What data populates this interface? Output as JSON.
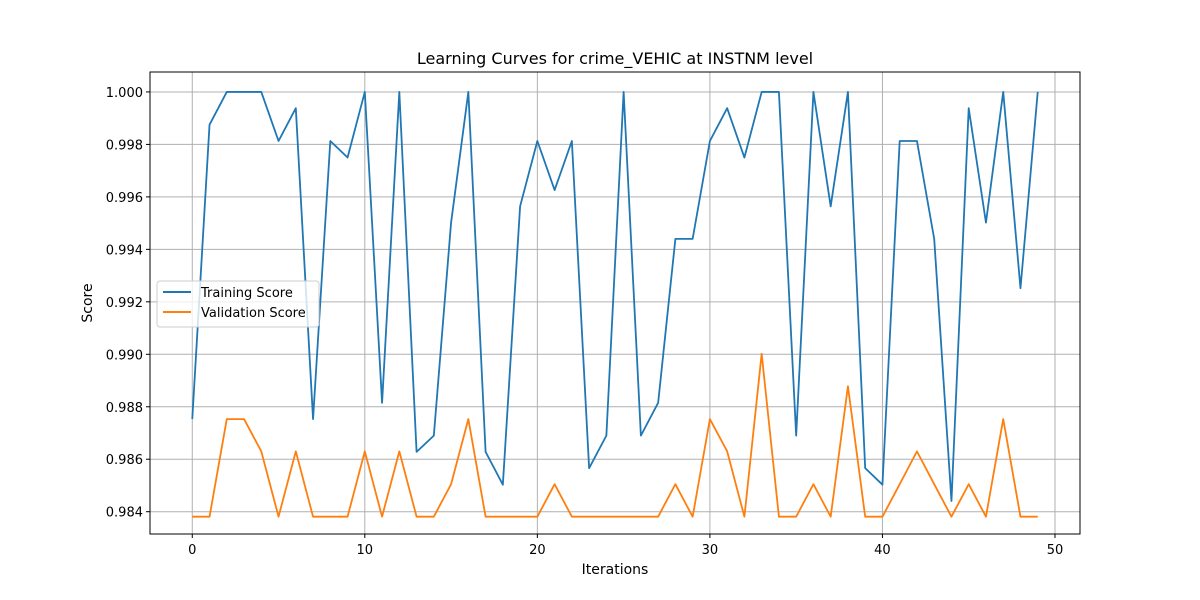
{
  "chart_data": {
    "type": "line",
    "title": "Learning Curves for crime_VEHIC at INSTNM level",
    "xlabel": "Iterations",
    "ylabel": "Score",
    "xlim": [
      -2.45,
      51.45
    ],
    "ylim": [
      0.98315,
      1.00076
    ],
    "xticks": [
      0,
      10,
      20,
      30,
      40,
      50
    ],
    "xtick_labels": [
      "0",
      "10",
      "20",
      "30",
      "40",
      "50"
    ],
    "yticks": [
      0.984,
      0.986,
      0.988,
      0.99,
      0.992,
      0.994,
      0.996,
      0.998,
      1.0
    ],
    "ytick_labels": [
      "0.984",
      "0.986",
      "0.988",
      "0.990",
      "0.992",
      "0.994",
      "0.996",
      "0.998",
      "1.000"
    ],
    "grid": true,
    "legend_position": "center-left",
    "x": [
      0,
      1,
      2,
      3,
      4,
      5,
      6,
      7,
      8,
      9,
      10,
      11,
      12,
      13,
      14,
      15,
      16,
      17,
      18,
      19,
      20,
      21,
      22,
      23,
      24,
      25,
      26,
      27,
      28,
      29,
      30,
      31,
      32,
      33,
      34,
      35,
      36,
      37,
      38,
      39,
      40,
      41,
      42,
      43,
      44,
      45,
      46,
      47,
      48,
      49
    ],
    "series": [
      {
        "name": "Training Score",
        "color": "#1f77b4",
        "values": [
          0.98753,
          0.99875,
          1.0,
          1.0,
          1.0,
          0.99813,
          0.99938,
          0.98753,
          0.99813,
          0.9975,
          1.0,
          0.98815,
          1.0,
          0.98628,
          0.9869,
          0.99502,
          1.0,
          0.98628,
          0.98503,
          0.99564,
          0.99813,
          0.99626,
          0.99813,
          0.98566,
          0.9869,
          1.0,
          0.9869,
          0.98815,
          0.9944,
          0.9944,
          0.99813,
          0.99938,
          0.9975,
          1.0,
          1.0,
          0.9869,
          1.0,
          0.99564,
          1.0,
          0.98566,
          0.98503,
          0.99813,
          0.99813,
          0.9944,
          0.98441,
          0.99938,
          0.99502,
          1.0,
          0.99252,
          1.0
        ]
      },
      {
        "name": "Validation Score",
        "color": "#ff7f0e",
        "values": [
          0.98381,
          0.98381,
          0.98753,
          0.98753,
          0.9863,
          0.98381,
          0.9863,
          0.98381,
          0.98381,
          0.98381,
          0.9863,
          0.98381,
          0.9863,
          0.98381,
          0.98381,
          0.98505,
          0.98753,
          0.98381,
          0.98381,
          0.98381,
          0.98381,
          0.98505,
          0.98381,
          0.98381,
          0.98381,
          0.98381,
          0.98381,
          0.98381,
          0.98505,
          0.98381,
          0.98753,
          0.9863,
          0.98381,
          0.99002,
          0.98381,
          0.98381,
          0.98505,
          0.98381,
          0.98878,
          0.98381,
          0.98381,
          0.98505,
          0.9863,
          0.98505,
          0.98381,
          0.98505,
          0.98381,
          0.98753,
          0.98381,
          0.98381
        ]
      }
    ]
  }
}
